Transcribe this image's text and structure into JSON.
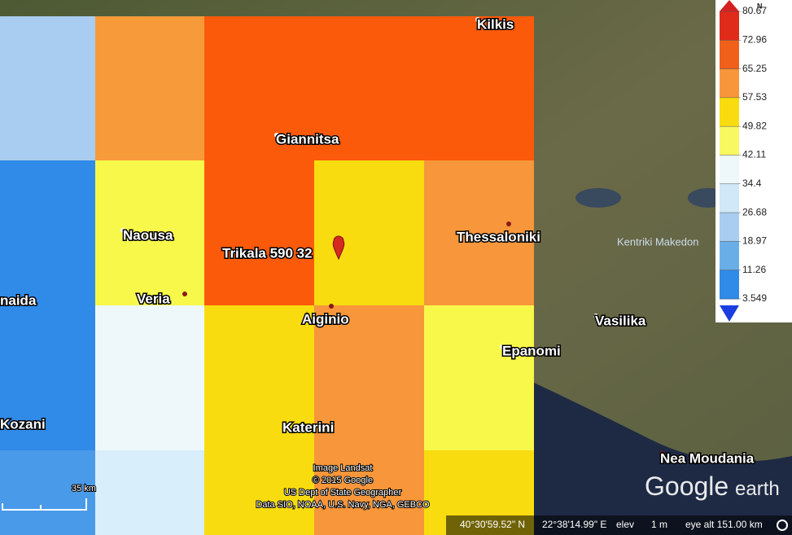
{
  "places": [
    "Kilkis",
    "Giannitsa",
    "Naousa",
    "Trikala 590 32",
    "Thessaloniki",
    "Kentriki Makedon",
    "Veria",
    "Aiginio",
    "Vasilika",
    "Epanomi",
    "naida",
    "Kozani",
    "Katerini",
    "Nea Moudania"
  ],
  "overlay": {
    "cells": [
      [
        "#a9cdf0",
        "#f79a3a",
        "#fb5a0a",
        "#fb5a0a",
        "#fb5a0a"
      ],
      [
        "#2f8ae8",
        "#f8f84a",
        "#fb5a0a",
        "#f8dc10",
        "#f7963a"
      ],
      [
        "#2f8ae8",
        "#eef8fb",
        "#f8dc10",
        "#f7963a",
        "#f8f84a"
      ],
      [
        "#4a9aea",
        "#d8eefa",
        "#f8dc10",
        "#f7963a",
        "#f8dc10"
      ]
    ]
  },
  "legend": {
    "unit": "N",
    "values": [
      80.67,
      72.96,
      65.25,
      57.53,
      49.82,
      42.11,
      34.4,
      26.68,
      18.97,
      11.26,
      3.549
    ],
    "colors": [
      "#e02a1a",
      "#f0601a",
      "#f7963a",
      "#f8dc10",
      "#f8f860",
      "#eef8fb",
      "#d0e8f8",
      "#a9cdf0",
      "#6aaee8",
      "#2f8ae8"
    ],
    "top_color": "#d42020",
    "bottom_color": "#1a3ee0"
  },
  "scale": "35 km",
  "attribution": [
    "Image Landsat",
    "© 2015 Google",
    "US Dept of State Geographer",
    "Data SIO, NOAA, U.S. Navy, NGA, GEBCO"
  ],
  "logo": {
    "brand": "Google",
    "product": "earth"
  },
  "status": {
    "lat": "40°30'59.52\" N",
    "lon": "22°38'14.99\" E",
    "elev_label": "elev",
    "elev": "1 m",
    "eye": "eye alt 151.00 km"
  }
}
